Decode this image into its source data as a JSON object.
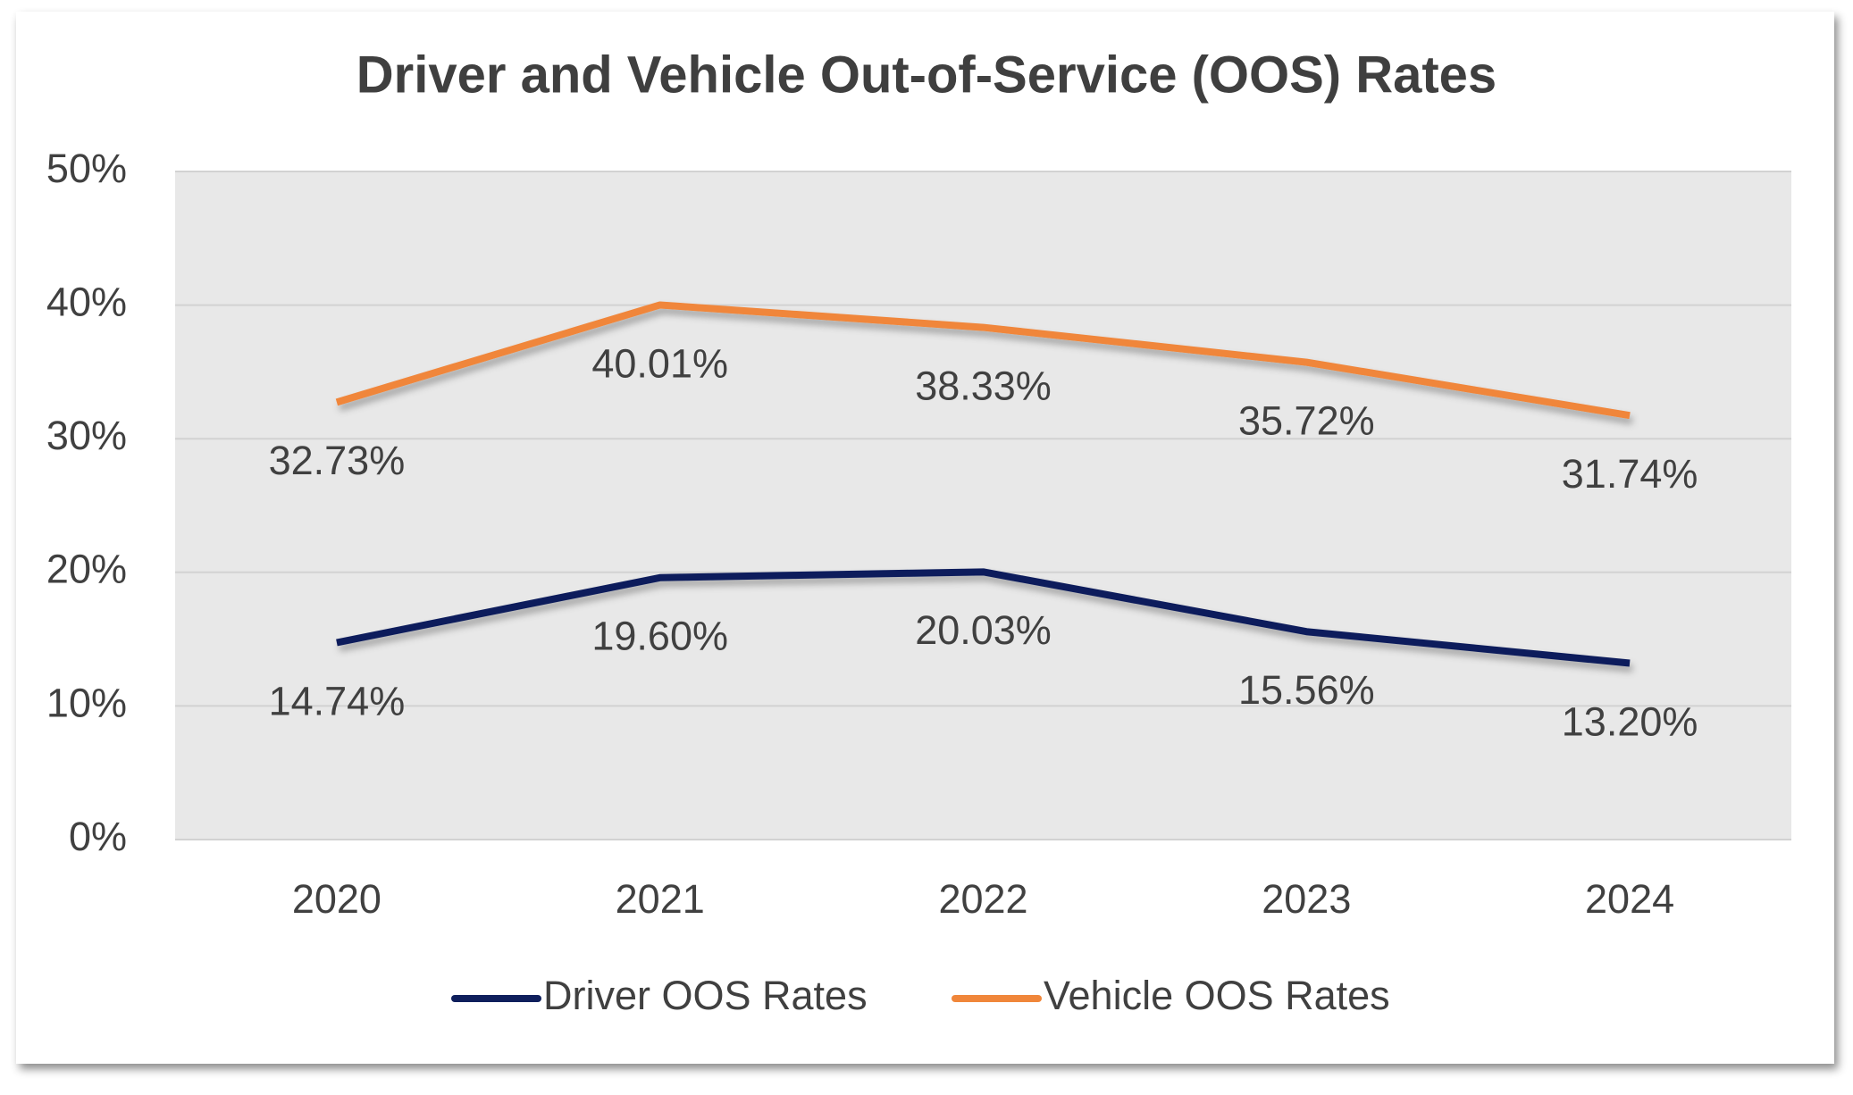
{
  "chart_data": {
    "type": "line",
    "title": "Driver and Vehicle Out-of-Service (OOS) Rates",
    "categories": [
      "2020",
      "2021",
      "2022",
      "2023",
      "2024"
    ],
    "series": [
      {
        "name": "Driver OOS Rates",
        "color": "#0f1f5c",
        "values": [
          14.74,
          19.6,
          20.03,
          15.56,
          13.2
        ],
        "value_labels": [
          "14.74%",
          "19.60%",
          "20.03%",
          "15.56%",
          "13.20%"
        ]
      },
      {
        "name": "Vehicle OOS Rates",
        "color": "#f0863a",
        "values": [
          32.73,
          40.01,
          38.33,
          35.72,
          31.74
        ],
        "value_labels": [
          "32.73%",
          "40.01%",
          "38.33%",
          "35.72%",
          "31.74%"
        ]
      }
    ],
    "ylim": [
      0,
      50
    ],
    "yticks": [
      {
        "value": 0,
        "label": "0%"
      },
      {
        "value": 10,
        "label": "10%"
      },
      {
        "value": 20,
        "label": "20%"
      },
      {
        "value": 30,
        "label": "30%"
      },
      {
        "value": 40,
        "label": "40%"
      },
      {
        "value": 50,
        "label": "50%"
      }
    ],
    "grid": true,
    "legend": "bottom"
  }
}
